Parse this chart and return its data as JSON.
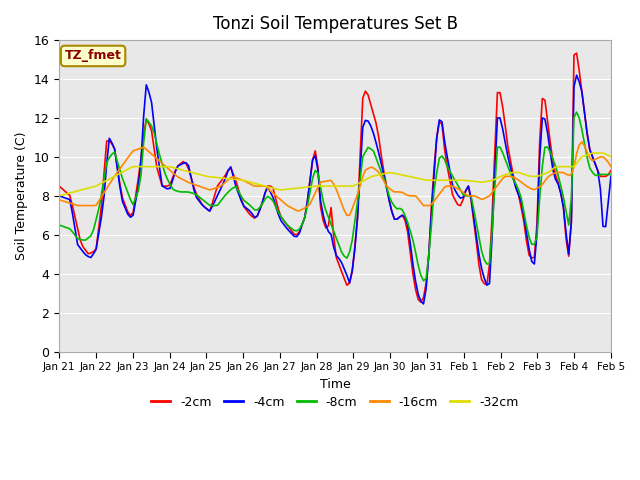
{
  "title": "Tonzi Soil Temperatures Set B",
  "xlabel": "Time",
  "ylabel": "Soil Temperature (C)",
  "ylim": [
    0,
    16
  ],
  "yticks": [
    0,
    2,
    4,
    6,
    8,
    10,
    12,
    14,
    16
  ],
  "legend_label": "TZ_fmet",
  "series_labels": [
    "-2cm",
    "-4cm",
    "-8cm",
    "-16cm",
    "-32cm"
  ],
  "series_colors": [
    "#ff0000",
    "#0000ff",
    "#00bb00",
    "#ff8800",
    "#dddd00"
  ],
  "line_width": 1.2,
  "background_color": "#e8e8e8",
  "x_tick_labels": [
    "Jan 21",
    "Jan 22",
    "Jan 23",
    "Jan 24",
    "Jan 25",
    "Jan 26",
    "Jan 27",
    "Jan 28",
    "Jan 29",
    "Jan 30",
    "Jan 31",
    "Feb 1",
    "Feb 2",
    "Feb 3",
    "Feb 4",
    "Feb 5"
  ],
  "points_per_day": 14,
  "num_days": 15
}
